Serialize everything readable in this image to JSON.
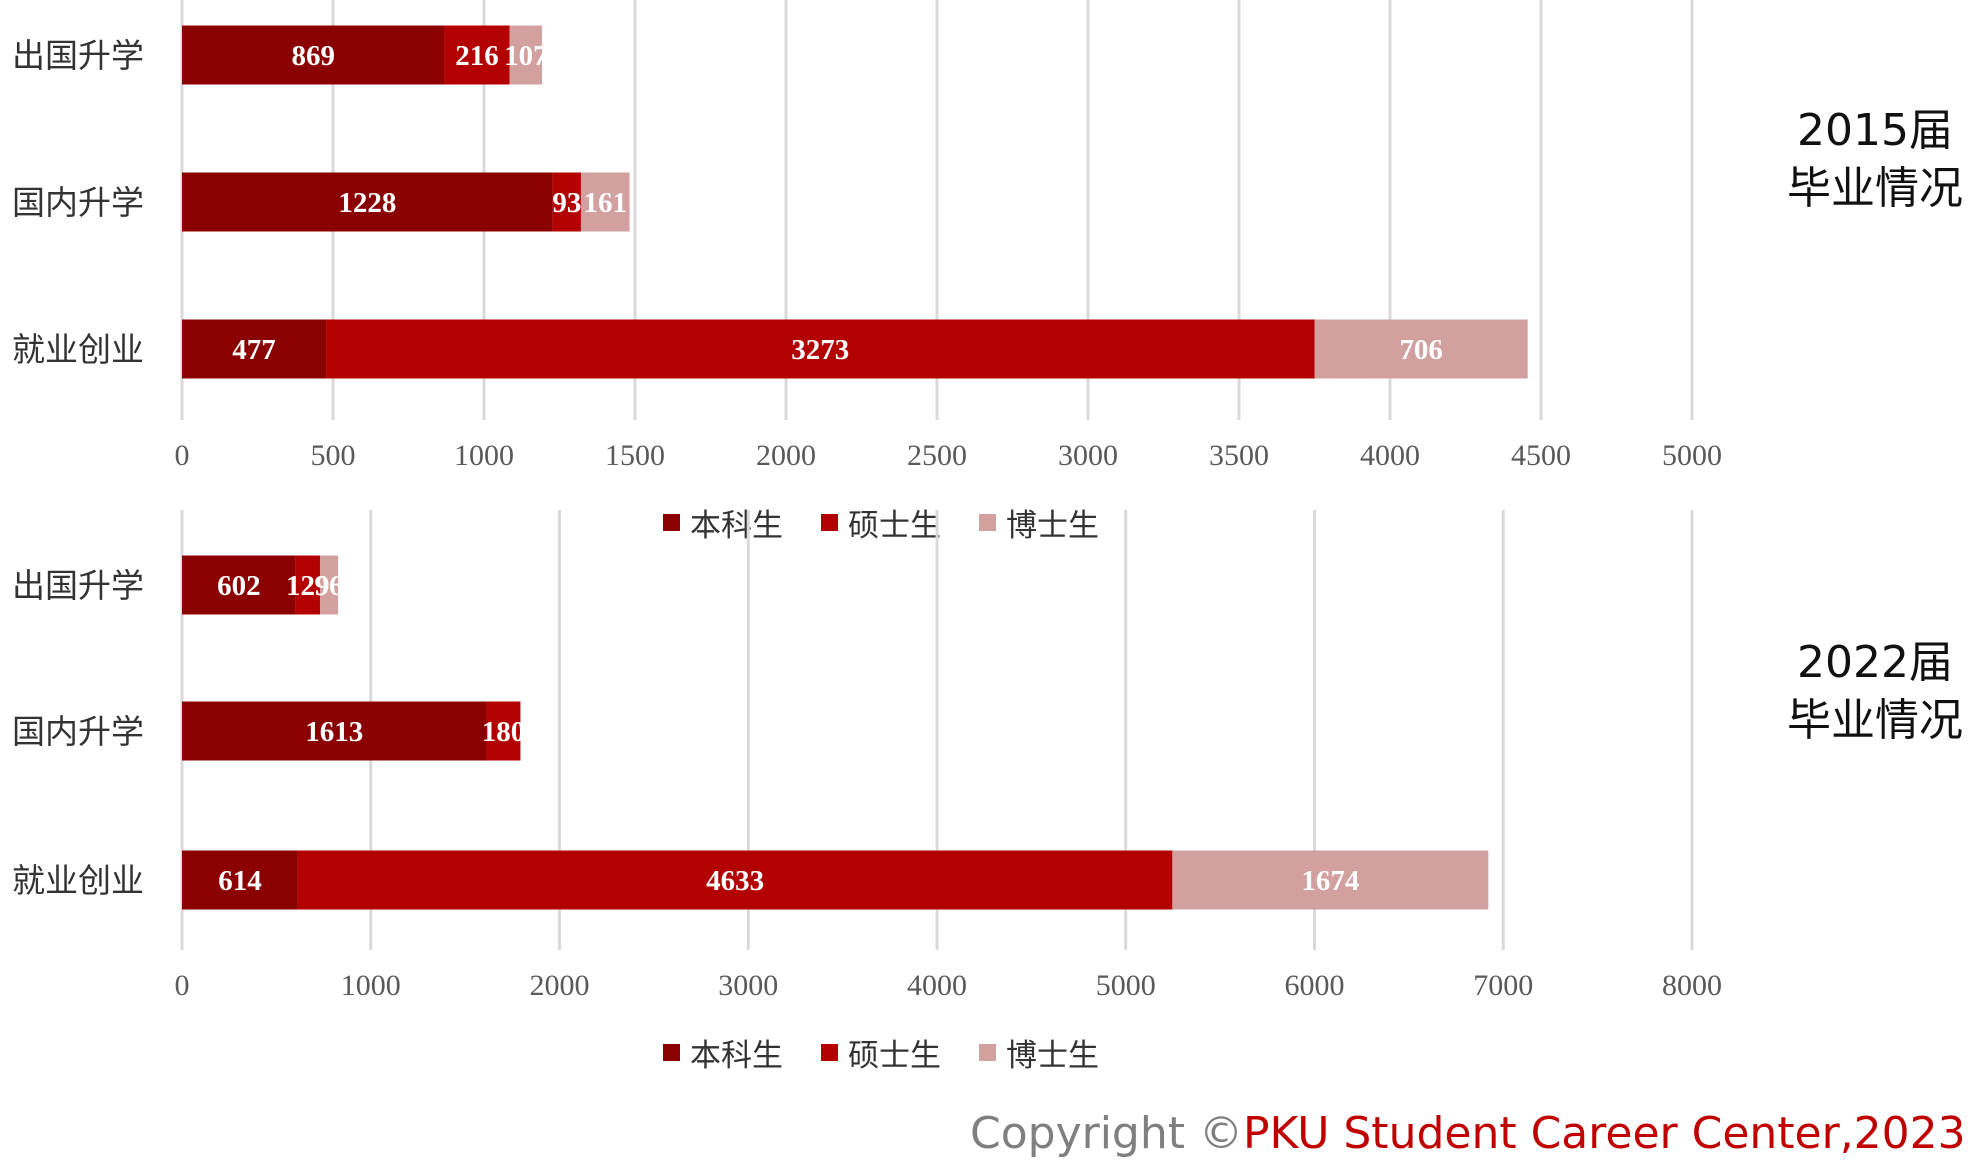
{
  "chart_data": [
    {
      "type": "bar",
      "orientation": "horizontal",
      "stacked": true,
      "side_title": [
        "2015届",
        "毕业情况"
      ],
      "categories": [
        "出国升学",
        "国内升学",
        "就业创业"
      ],
      "series": [
        {
          "name": "本科生",
          "values": [
            869,
            1228,
            477
          ],
          "color": "#8b0000"
        },
        {
          "name": "硕士生",
          "values": [
            216,
            93,
            3273
          ],
          "color": "#b30000"
        },
        {
          "name": "博士生",
          "values": [
            107,
            161,
            706
          ],
          "color": "#d3a0a0"
        }
      ],
      "xlim": [
        0,
        5000
      ],
      "x_ticks": [
        "0",
        "500",
        "1000",
        "1500",
        "2000",
        "2500",
        "3000",
        "3500",
        "4000",
        "4500",
        "5000"
      ],
      "grid": true,
      "legend": "bottom"
    },
    {
      "type": "bar",
      "orientation": "horizontal",
      "stacked": true,
      "side_title": [
        "2022届",
        "毕业情况"
      ],
      "categories": [
        "出国升学",
        "国内升学",
        "就业创业"
      ],
      "series": [
        {
          "name": "本科生",
          "values": [
            602,
            1613,
            614
          ],
          "color": "#8b0000"
        },
        {
          "name": "硕士生",
          "values": [
            129,
            180,
            4633
          ],
          "color": "#b30000"
        },
        {
          "name": "博士生",
          "values": [
            96,
            0,
            1674
          ],
          "color": "#d3a0a0"
        }
      ],
      "xlim": [
        0,
        8000
      ],
      "x_ticks": [
        "0",
        "1000",
        "2000",
        "3000",
        "4000",
        "5000",
        "6000",
        "7000",
        "8000"
      ],
      "grid": true,
      "legend": "bottom"
    }
  ],
  "footer": {
    "copyright_prefix": "Copyright ©",
    "copyright_org": "PKU Student Career Center,2023"
  }
}
